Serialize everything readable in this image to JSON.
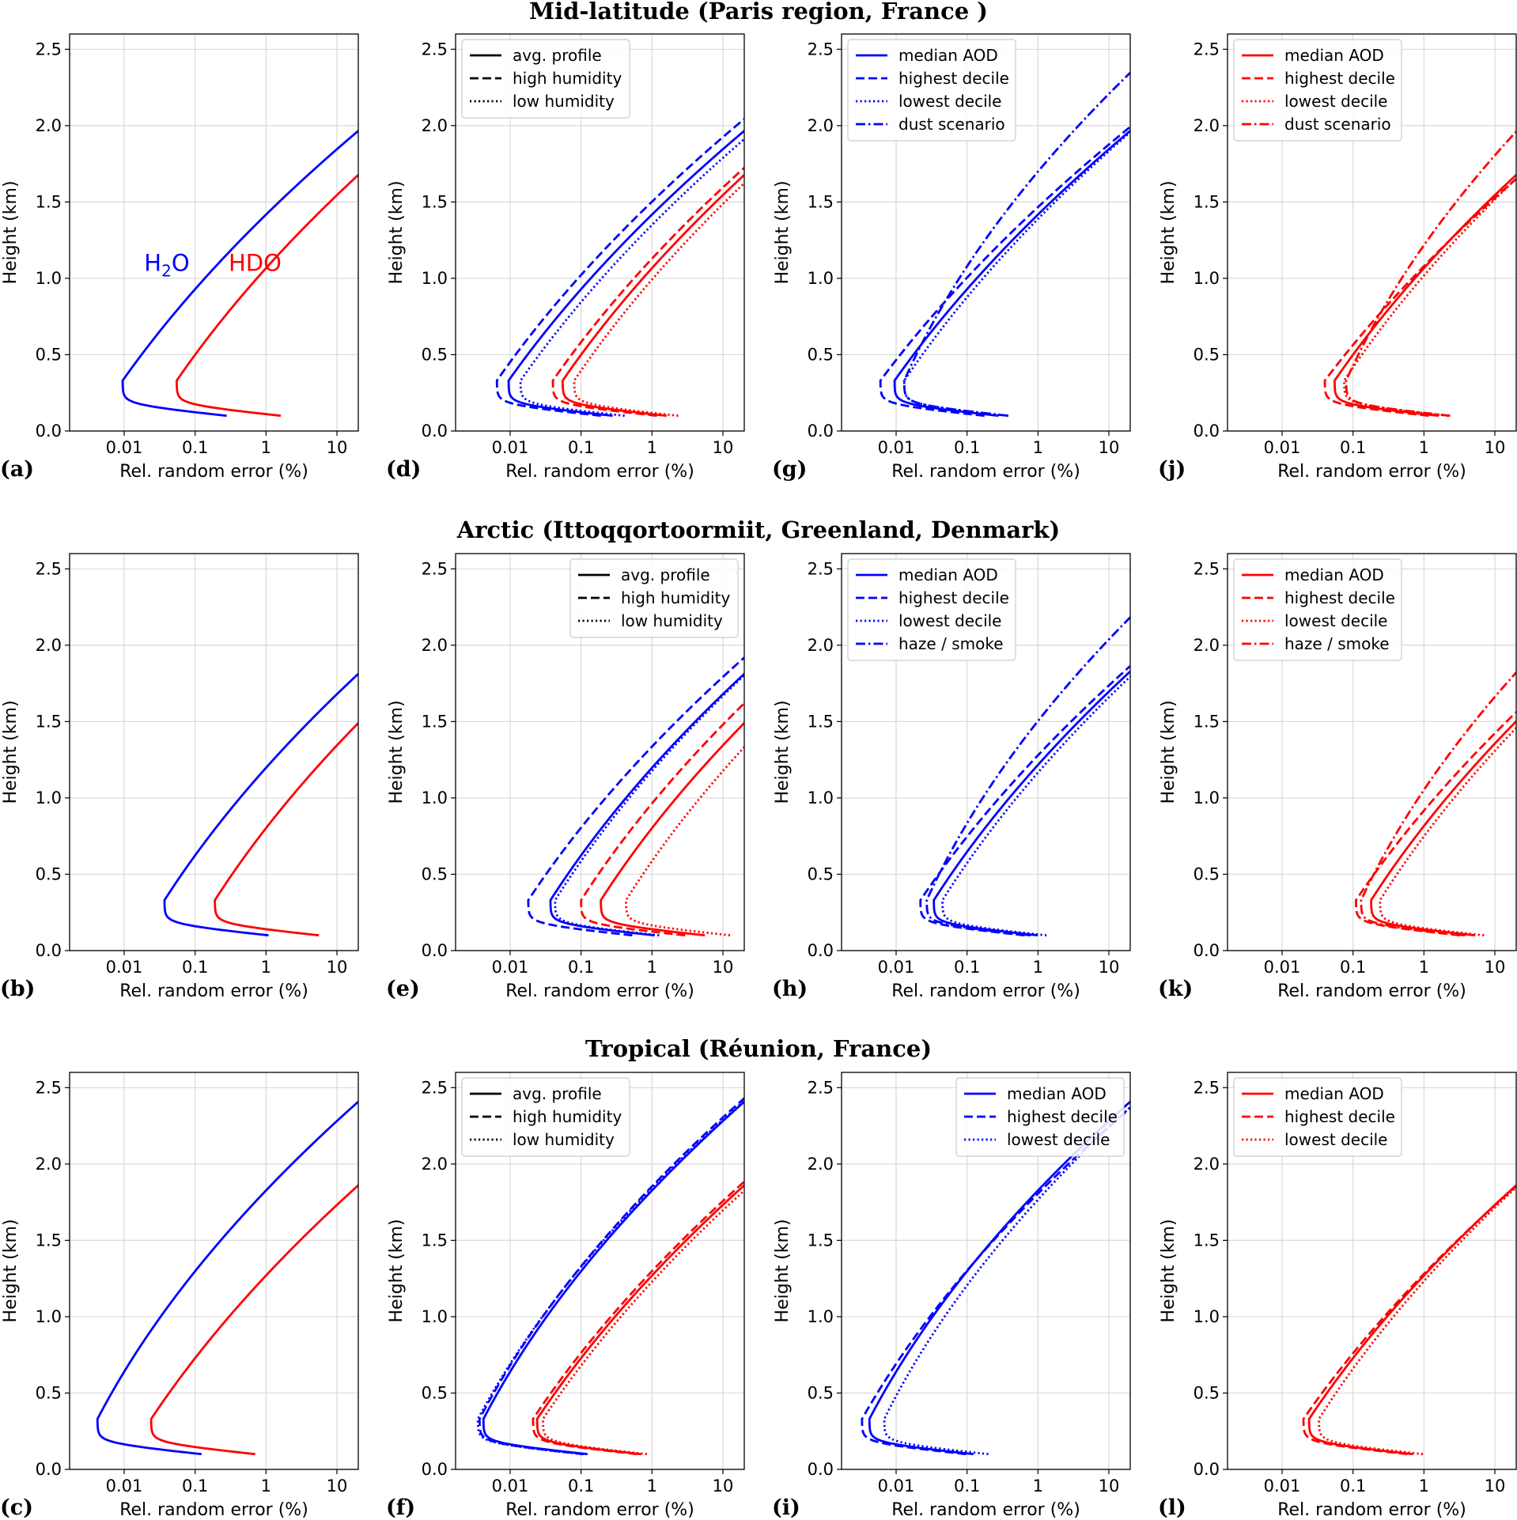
{
  "figure": {
    "rows": [
      {
        "title": "Mid-latitude (Paris region, France )"
      },
      {
        "title": "Arctic (Ittoqqortoormiit, Greenland, Denmark)"
      },
      {
        "title": "Tropical (Réunion, France)"
      }
    ],
    "colors": {
      "h2o": "#0000ff",
      "hdo": "#ff0000",
      "grid": "#d9d9d9",
      "legend_line": "#000000"
    },
    "common_axes": {
      "xlabel": "Rel. random error (%)",
      "ylabel": "Height (km)",
      "xscale": "log",
      "xlim": [
        0.0017,
        20
      ],
      "ylim": [
        0,
        2.6
      ],
      "xticks": [
        0.01,
        0.1,
        1,
        10
      ],
      "xticklabels": [
        "0.01",
        "0.1",
        "1",
        "10"
      ],
      "yticks": [
        0,
        0.5,
        1,
        1.5,
        2,
        2.5
      ],
      "yticklabels": [
        "0.0",
        "0.5",
        "1.0",
        "1.5",
        "2.0",
        "2.5"
      ],
      "grid": true
    }
  },
  "chart_data": [
    {
      "panel": "(a)",
      "row": 0,
      "col": 0,
      "type": "line",
      "annotations": [
        {
          "text": "H",
          "sub": "2",
          "text2": "O",
          "color": "#0000ff",
          "x": 0.04,
          "y": 1.05
        },
        {
          "text": "HDO",
          "color": "#ff0000",
          "x": 0.7,
          "y": 1.05
        }
      ],
      "series": [
        {
          "color": "#0000ff",
          "style": "solid",
          "params": {
            "m": 0.0095,
            "s": 1.52,
            "t": 2.2
          }
        },
        {
          "color": "#ff0000",
          "style": "solid",
          "params": {
            "m": 0.055,
            "s": 1.48,
            "t": 2.04
          }
        }
      ]
    },
    {
      "panel": "(d)",
      "row": 0,
      "col": 1,
      "type": "line",
      "legend": {
        "position": "top-left",
        "entries": [
          {
            "label": "avg. profile",
            "style": "solid"
          },
          {
            "label": "high humidity",
            "style": "dashed"
          },
          {
            "label": "low humidity",
            "style": "dotted"
          }
        ]
      },
      "series": [
        {
          "color": "#0000ff",
          "style": "solid",
          "params": {
            "m": 0.0095,
            "s": 1.52,
            "t": 2.2
          }
        },
        {
          "color": "#0000ff",
          "style": "dashed",
          "params": {
            "m": 0.0065,
            "s": 1.5,
            "t": 2.14
          }
        },
        {
          "color": "#0000ff",
          "style": "dotted",
          "params": {
            "m": 0.014,
            "s": 1.5,
            "t": 2.12
          }
        },
        {
          "color": "#ff0000",
          "style": "solid",
          "params": {
            "m": 0.055,
            "s": 1.48,
            "t": 2.04
          }
        },
        {
          "color": "#ff0000",
          "style": "dashed",
          "params": {
            "m": 0.04,
            "s": 1.5,
            "t": 2.1
          }
        },
        {
          "color": "#ff0000",
          "style": "dotted",
          "params": {
            "m": 0.08,
            "s": 1.45,
            "t": 1.87
          }
        }
      ]
    },
    {
      "panel": "(g)",
      "row": 0,
      "col": 2,
      "type": "line",
      "legend": {
        "position": "top-left",
        "entries": [
          {
            "label": "median AOD",
            "style": "solid"
          },
          {
            "label": "highest decile",
            "style": "dashed"
          },
          {
            "label": "lowest decile",
            "style": "dotted"
          },
          {
            "label": "dust scenario",
            "style": "dashdot"
          }
        ]
      },
      "series": [
        {
          "color": "#0000ff",
          "style": "solid",
          "params": {
            "m": 0.0095,
            "s": 1.52,
            "t": 2.2
          }
        },
        {
          "color": "#0000ff",
          "style": "dashed",
          "params": {
            "m": 0.006,
            "s": 1.6,
            "t": 2.42
          }
        },
        {
          "color": "#0000ff",
          "style": "dotted",
          "params": {
            "m": 0.013,
            "s": 1.45,
            "t": 2.03
          }
        },
        {
          "color": "#0000ff",
          "style": "dashdot",
          "params": {
            "m": 0.013,
            "s": 0.95,
            "t": 3.3
          }
        }
      ]
    },
    {
      "panel": "(j)",
      "row": 0,
      "col": 3,
      "type": "line",
      "legend": {
        "position": "top-left",
        "entries": [
          {
            "label": "median AOD",
            "style": "solid"
          },
          {
            "label": "highest decile",
            "style": "dashed"
          },
          {
            "label": "lowest decile",
            "style": "dotted"
          },
          {
            "label": "dust scenario",
            "style": "dashdot"
          }
        ]
      },
      "series": [
        {
          "color": "#ff0000",
          "style": "solid",
          "params": {
            "m": 0.055,
            "s": 1.48,
            "t": 2.04
          }
        },
        {
          "color": "#ff0000",
          "style": "dashed",
          "params": {
            "m": 0.04,
            "s": 1.63,
            "t": 2.29
          }
        },
        {
          "color": "#ff0000",
          "style": "dotted",
          "params": {
            "m": 0.075,
            "s": 1.42,
            "t": 1.85
          }
        },
        {
          "color": "#ff0000",
          "style": "dashdot",
          "params": {
            "m": 0.08,
            "s": 0.96,
            "t": 2.72
          }
        }
      ]
    },
    {
      "panel": "(b)",
      "row": 1,
      "col": 0,
      "type": "line",
      "series": [
        {
          "color": "#0000ff",
          "style": "solid",
          "params": {
            "m": 0.037,
            "s": 1.38,
            "t": 1.69
          }
        },
        {
          "color": "#ff0000",
          "style": "solid",
          "params": {
            "m": 0.19,
            "s": 1.38,
            "t": 1.44
          }
        }
      ]
    },
    {
      "panel": "(e)",
      "row": 1,
      "col": 1,
      "type": "line",
      "legend": {
        "position": "top-right",
        "entries": [
          {
            "label": "avg. profile",
            "style": "solid"
          },
          {
            "label": "high humidity",
            "style": "dashed"
          },
          {
            "label": "low humidity",
            "style": "dotted"
          }
        ]
      },
      "series": [
        {
          "color": "#0000ff",
          "style": "solid",
          "params": {
            "m": 0.037,
            "s": 1.38,
            "t": 1.69
          }
        },
        {
          "color": "#0000ff",
          "style": "dashed",
          "params": {
            "m": 0.018,
            "s": 1.42,
            "t": 1.75
          }
        },
        {
          "color": "#0000ff",
          "style": "dotted",
          "params": {
            "m": 0.043,
            "s": 1.35,
            "t": 1.67
          }
        },
        {
          "color": "#ff0000",
          "style": "solid",
          "params": {
            "m": 0.19,
            "s": 1.38,
            "t": 1.44
          }
        },
        {
          "color": "#ff0000",
          "style": "dashed",
          "params": {
            "m": 0.1,
            "s": 1.38,
            "t": 1.57
          }
        },
        {
          "color": "#ff0000",
          "style": "dotted",
          "params": {
            "m": 0.43,
            "s": 1.35,
            "t": 1.27
          }
        }
      ]
    },
    {
      "panel": "(h)",
      "row": 1,
      "col": 2,
      "type": "line",
      "legend": {
        "position": "top-left",
        "entries": [
          {
            "label": "median AOD",
            "style": "solid"
          },
          {
            "label": "highest decile",
            "style": "dashed"
          },
          {
            "label": "lowest decile",
            "style": "dotted"
          },
          {
            "label": "haze / smoke",
            "style": "dashdot"
          }
        ]
      },
      "series": [
        {
          "color": "#0000ff",
          "style": "solid",
          "params": {
            "m": 0.034,
            "s": 1.38,
            "t": 1.69
          }
        },
        {
          "color": "#0000ff",
          "style": "dashed",
          "params": {
            "m": 0.022,
            "s": 1.45,
            "t": 1.91
          }
        },
        {
          "color": "#0000ff",
          "style": "dotted",
          "params": {
            "m": 0.045,
            "s": 1.35,
            "t": 1.63
          }
        },
        {
          "color": "#0000ff",
          "style": "dashdot",
          "params": {
            "m": 0.027,
            "s": 0.97,
            "t": 2.62
          }
        }
      ]
    },
    {
      "panel": "(k)",
      "row": 1,
      "col": 3,
      "type": "line",
      "legend": {
        "position": "top-left",
        "entries": [
          {
            "label": "median AOD",
            "style": "solid"
          },
          {
            "label": "highest decile",
            "style": "dashed"
          },
          {
            "label": "lowest decile",
            "style": "dotted"
          },
          {
            "label": "haze / smoke",
            "style": "dashdot"
          }
        ]
      },
      "series": [
        {
          "color": "#ff0000",
          "style": "solid",
          "params": {
            "m": 0.18,
            "s": 1.38,
            "t": 1.44
          }
        },
        {
          "color": "#ff0000",
          "style": "dashed",
          "params": {
            "m": 0.11,
            "s": 1.45,
            "t": 1.69
          }
        },
        {
          "color": "#ff0000",
          "style": "dotted",
          "params": {
            "m": 0.24,
            "s": 1.35,
            "t": 1.37
          }
        },
        {
          "color": "#ff0000",
          "style": "dashdot",
          "params": {
            "m": 0.13,
            "s": 1.0,
            "t": 2.6
          }
        }
      ]
    },
    {
      "panel": "(c)",
      "row": 2,
      "col": 0,
      "type": "line",
      "series": [
        {
          "color": "#0000ff",
          "style": "solid",
          "params": {
            "m": 0.0042,
            "s": 1.12,
            "t": 1.94
          }
        },
        {
          "color": "#ff0000",
          "style": "solid",
          "params": {
            "m": 0.024,
            "s": 1.43,
            "t": 2.18
          }
        }
      ]
    },
    {
      "panel": "(f)",
      "row": 2,
      "col": 1,
      "type": "line",
      "legend": {
        "position": "top-left",
        "entries": [
          {
            "label": "avg. profile",
            "style": "solid"
          },
          {
            "label": "high humidity",
            "style": "dashed"
          },
          {
            "label": "low humidity",
            "style": "dotted"
          }
        ]
      },
      "series": [
        {
          "color": "#0000ff",
          "style": "solid",
          "params": {
            "m": 0.0042,
            "s": 1.12,
            "t": 1.94
          }
        },
        {
          "color": "#0000ff",
          "style": "dashed",
          "params": {
            "m": 0.0037,
            "s": 1.12,
            "t": 1.88
          }
        },
        {
          "color": "#0000ff",
          "style": "dotted",
          "params": {
            "m": 0.0035,
            "s": 1.15,
            "t": 2.04
          }
        },
        {
          "color": "#ff0000",
          "style": "solid",
          "params": {
            "m": 0.024,
            "s": 1.43,
            "t": 2.18
          }
        },
        {
          "color": "#ff0000",
          "style": "dashed",
          "params": {
            "m": 0.021,
            "s": 1.43,
            "t": 2.22
          }
        },
        {
          "color": "#ff0000",
          "style": "dotted",
          "params": {
            "m": 0.029,
            "s": 1.43,
            "t": 2.13
          }
        }
      ]
    },
    {
      "panel": "(i)",
      "row": 2,
      "col": 2,
      "type": "line",
      "legend": {
        "position": "top-right",
        "entries": [
          {
            "label": "median AOD",
            "style": "solid"
          },
          {
            "label": "highest decile",
            "style": "dashed"
          },
          {
            "label": "lowest decile",
            "style": "dotted"
          }
        ]
      },
      "series": [
        {
          "color": "#0000ff",
          "style": "solid",
          "params": {
            "m": 0.0042,
            "s": 1.12,
            "t": 1.94
          }
        },
        {
          "color": "#0000ff",
          "style": "dashed",
          "params": {
            "m": 0.0033,
            "s": 1.22,
            "t": 2.08
          }
        },
        {
          "color": "#0000ff",
          "style": "dotted",
          "params": {
            "m": 0.0068,
            "s": 1.06,
            "t": 1.8
          }
        }
      ]
    },
    {
      "panel": "(l)",
      "row": 2,
      "col": 3,
      "type": "line",
      "legend": {
        "position": "top-left",
        "entries": [
          {
            "label": "median AOD",
            "style": "solid"
          },
          {
            "label": "highest decile",
            "style": "dashed"
          },
          {
            "label": "lowest decile",
            "style": "dotted"
          }
        ]
      },
      "series": [
        {
          "color": "#ff0000",
          "style": "solid",
          "params": {
            "m": 0.024,
            "s": 1.43,
            "t": 2.18
          }
        },
        {
          "color": "#ff0000",
          "style": "dashed",
          "params": {
            "m": 0.02,
            "s": 1.49,
            "t": 2.33
          }
        },
        {
          "color": "#ff0000",
          "style": "dotted",
          "params": {
            "m": 0.033,
            "s": 1.36,
            "t": 2.02
          }
        }
      ]
    }
  ]
}
